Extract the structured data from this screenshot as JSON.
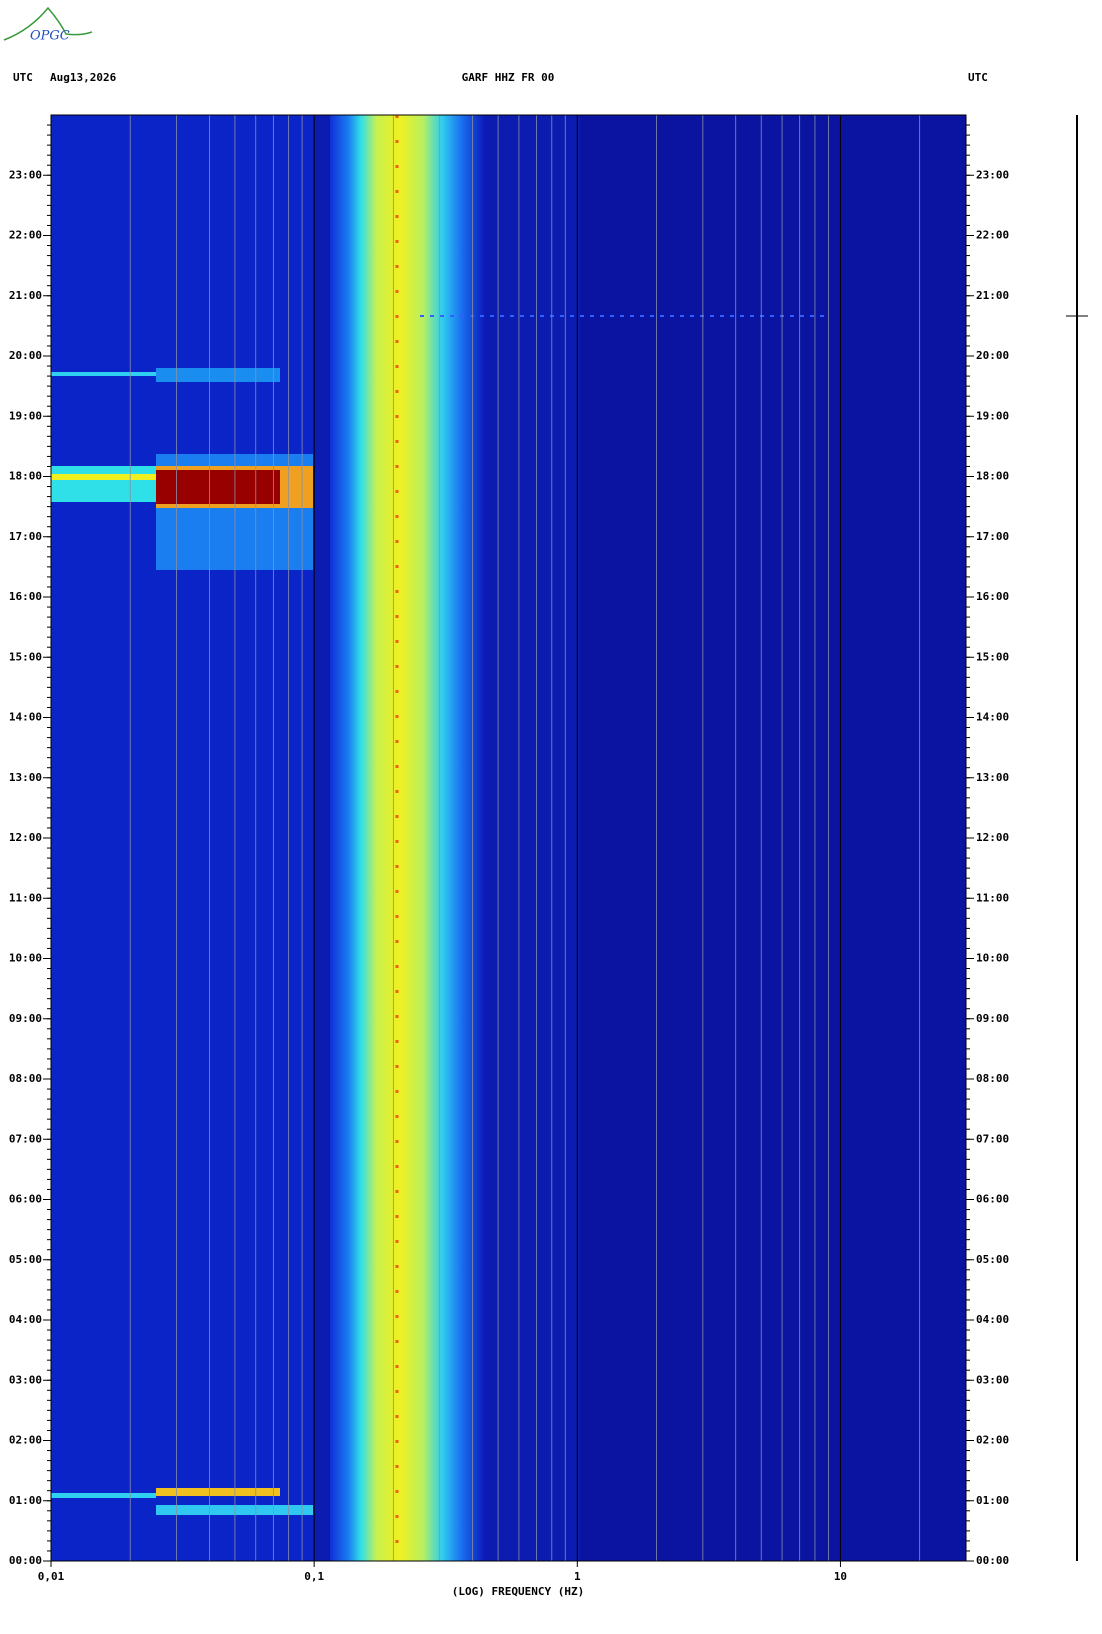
{
  "logo": "OPGC",
  "chart_data": {
    "type": "spectrogram",
    "header": {
      "left_zone": "UTC",
      "date": "Aug13,2026",
      "station": "GARF HHZ FR 00",
      "right_zone": "UTC"
    },
    "x_label": "(LOG) FREQUENCY (HZ)",
    "xscale": "log",
    "xlim": [
      0.01,
      30
    ],
    "xticks": [
      {
        "value": 0.01,
        "label": "0,01"
      },
      {
        "value": 0.1,
        "label": "0,1"
      },
      1,
      10
    ],
    "ylim": [
      0,
      24
    ],
    "yticks": [
      {
        "value": 0,
        "label": "00:00"
      },
      {
        "value": 1,
        "label": "01:00"
      },
      {
        "value": 2,
        "label": "02:00"
      },
      {
        "value": 3,
        "label": "03:00"
      },
      {
        "value": 4,
        "label": "04:00"
      },
      {
        "value": 5,
        "label": "05:00"
      },
      {
        "value": 6,
        "label": "06:00"
      },
      {
        "value": 7,
        "label": "07:00"
      },
      {
        "value": 8,
        "label": "08:00"
      },
      {
        "value": 9,
        "label": "09:00"
      },
      {
        "value": 10,
        "label": "10:00"
      },
      {
        "value": 11,
        "label": "11:00"
      },
      {
        "value": 12,
        "label": "12:00"
      },
      {
        "value": 13,
        "label": "13:00"
      },
      {
        "value": 14,
        "label": "14:00"
      },
      {
        "value": 15,
        "label": "15:00"
      },
      {
        "value": 16,
        "label": "16:00"
      },
      {
        "value": 17,
        "label": "17:00"
      },
      {
        "value": 18,
        "label": "18:00"
      },
      {
        "value": 19,
        "label": "19:00"
      },
      {
        "value": 20,
        "label": "20:00"
      },
      {
        "value": 21,
        "label": "21:00"
      },
      {
        "value": 22,
        "label": "22:00"
      },
      {
        "value": 23,
        "label": "23:00"
      }
    ],
    "grid": true
  }
}
